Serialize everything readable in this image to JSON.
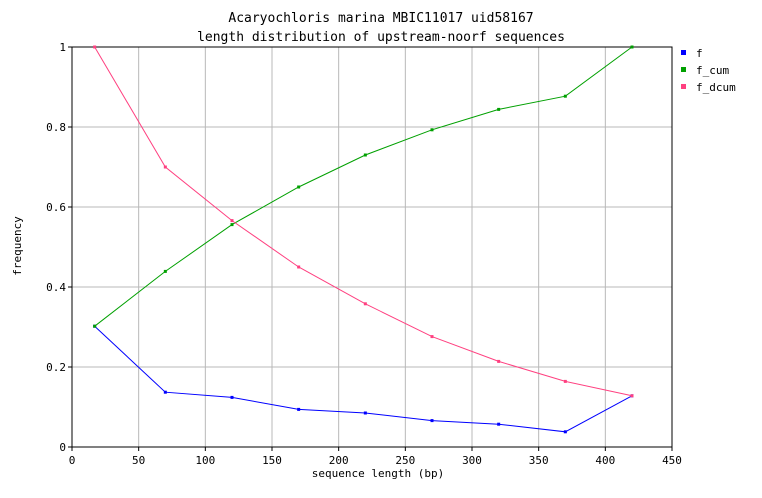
{
  "chart_data": {
    "type": "line",
    "title": "Acaryochloris marina MBIC11017 uid58167",
    "subtitle": "length distribution of upstream-noorf sequences",
    "xlabel": "sequence length (bp)",
    "ylabel": "frequency",
    "xlim": [
      0,
      450
    ],
    "ylim": [
      0,
      1
    ],
    "x_ticks": [
      0,
      50,
      100,
      150,
      200,
      250,
      300,
      350,
      400,
      450
    ],
    "y_ticks": [
      0,
      0.2,
      0.4,
      0.6,
      0.8,
      1
    ],
    "grid": true,
    "legend_position": "top-right",
    "x": [
      17,
      70,
      120,
      170,
      220,
      270,
      320,
      370,
      420
    ],
    "series": [
      {
        "name": "f",
        "color": "#0000ff",
        "values": [
          0.302,
          0.137,
          0.124,
          0.094,
          0.085,
          0.066,
          0.057,
          0.038,
          0.128
        ]
      },
      {
        "name": "f_cum",
        "color": "#00a000",
        "values": [
          0.302,
          0.439,
          0.556,
          0.65,
          0.73,
          0.793,
          0.844,
          0.877,
          1.0
        ]
      },
      {
        "name": "f_dcum",
        "color": "#ff4080",
        "values": [
          1.0,
          0.7,
          0.566,
          0.45,
          0.358,
          0.276,
          0.214,
          0.164,
          0.128
        ]
      }
    ]
  }
}
